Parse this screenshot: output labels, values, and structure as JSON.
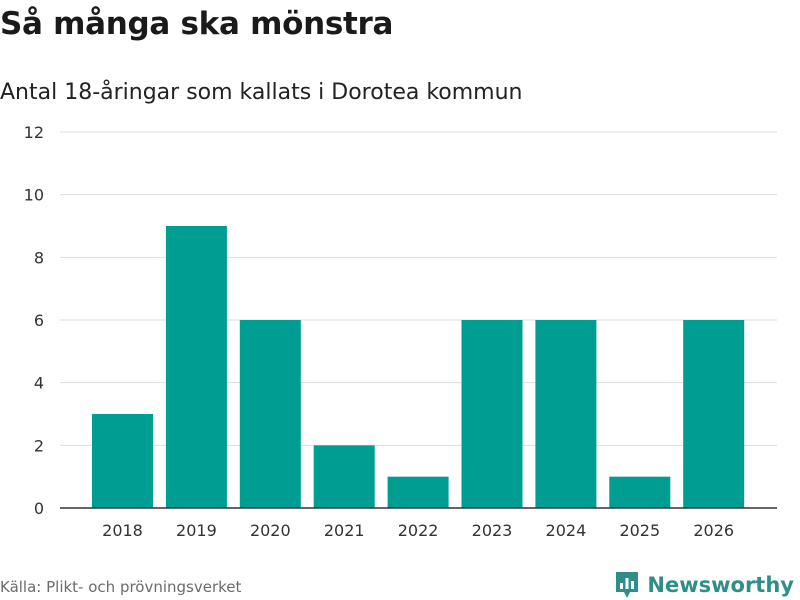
{
  "title": "Så många ska mönstra",
  "subtitle": "Antal 18-åringar som kallats i Dorotea kommun",
  "source": "Källa: Plikt- och prövningsverket",
  "brand": {
    "name": "Newsworthy",
    "icon": "newsworthy-logo-icon",
    "color": "#2f8f88"
  },
  "colors": {
    "bar": "#009e92",
    "grid": "#dddddd",
    "axis": "#333333"
  },
  "chart_data": {
    "type": "bar",
    "title": "Så många ska mönstra",
    "subtitle": "Antal 18-åringar som kallats i Dorotea kommun",
    "xlabel": "",
    "ylabel": "",
    "categories": [
      "2018",
      "2019",
      "2020",
      "2021",
      "2022",
      "2023",
      "2024",
      "2025",
      "2026"
    ],
    "values": [
      3,
      9,
      6,
      2,
      1,
      6,
      6,
      1,
      6
    ],
    "ylim": [
      0,
      12
    ],
    "yticks": [
      "0",
      "2",
      "4",
      "6",
      "8",
      "10",
      "12"
    ],
    "grid": true,
    "legend": "none"
  }
}
